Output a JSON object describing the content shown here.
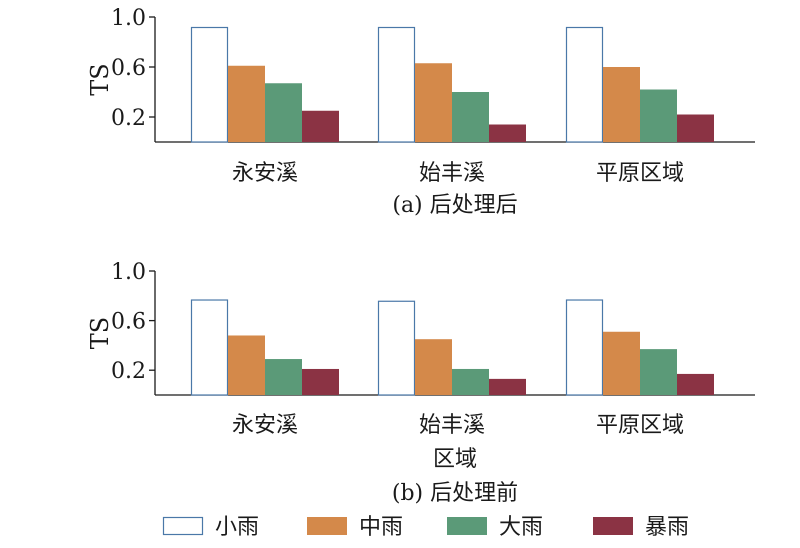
{
  "colors": {
    "小雨": "#ffffff",
    "小雨_stroke": "#4a78a8",
    "中雨": "#d4894a",
    "大雨": "#5b9a78",
    "暴雨": "#8b3344",
    "axis": "#1a1a1a"
  },
  "chart_data": [
    {
      "type": "bar",
      "caption": "(a) 后处理后",
      "xlabel": "",
      "ylabel": "TS",
      "ylim": [
        0.0,
        1.0
      ],
      "yticks": [
        "0.2",
        "0.6",
        "1.0"
      ],
      "categories": [
        "永安溪",
        "始丰溪",
        "平原区域"
      ],
      "series": [
        {
          "name": "小雨",
          "values": [
            0.92,
            0.92,
            0.92
          ]
        },
        {
          "name": "中雨",
          "values": [
            0.61,
            0.63,
            0.6
          ]
        },
        {
          "name": "大雨",
          "values": [
            0.47,
            0.4,
            0.42
          ]
        },
        {
          "name": "暴雨",
          "values": [
            0.25,
            0.14,
            0.22
          ]
        }
      ]
    },
    {
      "type": "bar",
      "caption": "(b) 后处理前",
      "xlabel": "区域",
      "ylabel": "TS",
      "ylim": [
        0.0,
        1.0
      ],
      "yticks": [
        "0.2",
        "0.6",
        "1.0"
      ],
      "categories": [
        "永安溪",
        "始丰溪",
        "平原区域"
      ],
      "series": [
        {
          "name": "小雨",
          "values": [
            0.77,
            0.76,
            0.77
          ]
        },
        {
          "name": "中雨",
          "values": [
            0.48,
            0.45,
            0.51
          ]
        },
        {
          "name": "大雨",
          "values": [
            0.29,
            0.21,
            0.37
          ]
        },
        {
          "name": "暴雨",
          "values": [
            0.21,
            0.13,
            0.17
          ]
        }
      ]
    }
  ],
  "legend": {
    "position": "bottom",
    "items": [
      "小雨",
      "中雨",
      "大雨",
      "暴雨"
    ]
  }
}
